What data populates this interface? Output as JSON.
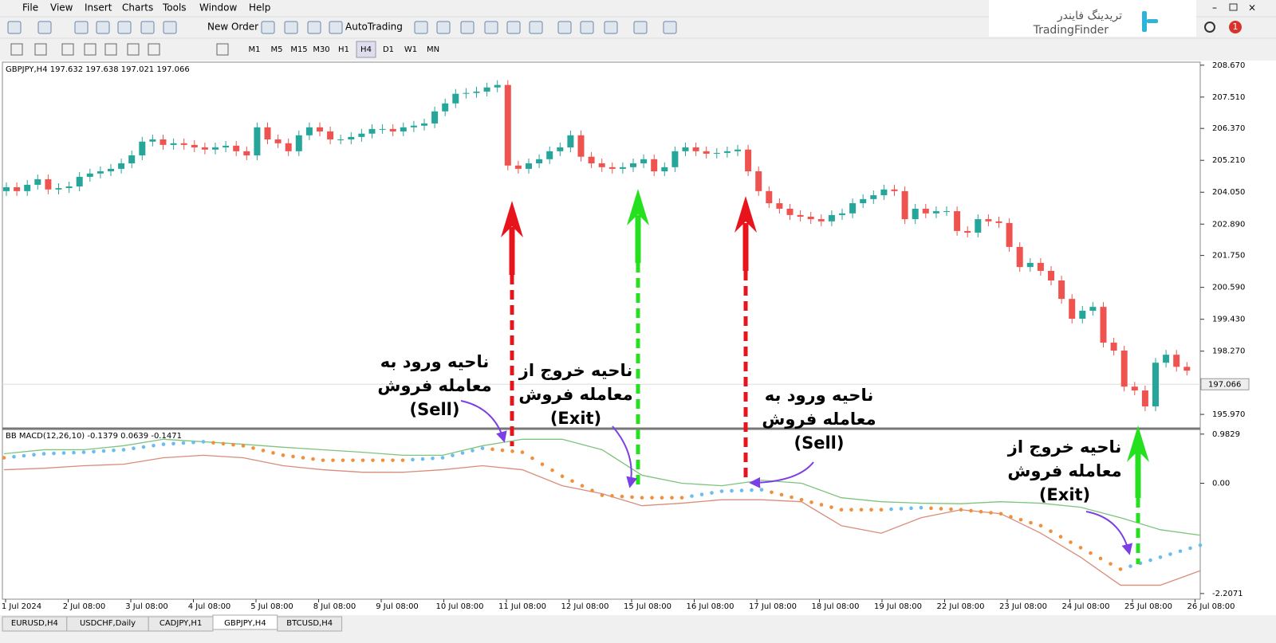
{
  "menu": [
    "File",
    "View",
    "Insert",
    "Charts",
    "Tools",
    "Window",
    "Help"
  ],
  "toolbar": {
    "new_order": "New Order",
    "auto_trading": "AutoTrading"
  },
  "timeframes": [
    "M1",
    "M5",
    "M15",
    "M30",
    "H1",
    "H4",
    "D1",
    "W1",
    "MN"
  ],
  "logo": {
    "fa": "تریدینگ فایندر",
    "en": "TradingFinder"
  },
  "notification": "1",
  "price_chart": {
    "type": "candlestick",
    "header": "GBPJPY,H4 197.632 197.638 197.021 197.066",
    "ylim": [
      195.48,
      208.78
    ],
    "yticks": [
      {
        "value": 208.67,
        "label": "208.670"
      },
      {
        "value": 207.51,
        "label": "207.510"
      },
      {
        "value": 206.37,
        "label": "206.370"
      },
      {
        "value": 205.21,
        "label": "205.210"
      },
      {
        "value": 204.05,
        "label": "204.050"
      },
      {
        "value": 202.89,
        "label": "202.890"
      },
      {
        "value": 201.75,
        "label": "201.750"
      },
      {
        "value": 200.59,
        "label": "200.590"
      },
      {
        "value": 199.43,
        "label": "199.430"
      },
      {
        "value": 198.27,
        "label": "198.270"
      },
      {
        "value": 195.97,
        "label": "195.970"
      }
    ],
    "current_price": 197.066,
    "up_color": "#26a69a",
    "down_color": "#ef5350",
    "candles": [
      [
        204.09,
        204.23
      ],
      [
        204.23,
        204.09
      ],
      [
        204.09,
        204.32
      ],
      [
        204.32,
        204.52
      ],
      [
        204.52,
        204.15
      ],
      [
        204.15,
        204.2
      ],
      [
        204.2,
        204.26
      ],
      [
        204.26,
        204.61
      ],
      [
        204.61,
        204.73
      ],
      [
        204.73,
        204.81
      ],
      [
        204.81,
        204.9
      ],
      [
        204.9,
        205.1
      ],
      [
        205.1,
        205.39
      ],
      [
        205.39,
        205.89
      ],
      [
        205.89,
        205.97
      ],
      [
        205.97,
        205.77
      ],
      [
        205.77,
        205.83
      ],
      [
        205.83,
        205.77
      ],
      [
        205.77,
        205.68
      ],
      [
        205.68,
        205.6
      ],
      [
        205.6,
        205.68
      ],
      [
        205.68,
        205.74
      ],
      [
        205.74,
        205.54
      ],
      [
        205.54,
        205.39
      ],
      [
        205.39,
        206.41
      ],
      [
        206.41,
        205.97
      ],
      [
        205.97,
        205.83
      ],
      [
        205.83,
        205.54
      ],
      [
        205.54,
        206.12
      ],
      [
        206.12,
        206.41
      ],
      [
        206.41,
        206.26
      ],
      [
        206.26,
        205.97
      ],
      [
        205.97,
        205.97
      ],
      [
        205.97,
        206.06
      ],
      [
        206.06,
        206.18
      ],
      [
        206.18,
        206.35
      ],
      [
        206.35,
        206.35
      ],
      [
        206.35,
        206.26
      ],
      [
        206.26,
        206.41
      ],
      [
        206.41,
        206.47
      ],
      [
        206.47,
        206.55
      ],
      [
        206.55,
        206.99
      ],
      [
        206.99,
        207.28
      ],
      [
        207.28,
        207.63
      ],
      [
        207.63,
        207.66
      ],
      [
        207.66,
        207.71
      ],
      [
        207.71,
        207.86
      ],
      [
        207.86,
        207.95
      ],
      [
        207.95,
        205.02
      ],
      [
        205.02,
        204.9
      ],
      [
        204.9,
        205.1
      ],
      [
        205.1,
        205.25
      ],
      [
        205.25,
        205.54
      ],
      [
        205.54,
        205.68
      ],
      [
        205.68,
        206.12
      ],
      [
        206.12,
        205.34
      ],
      [
        205.34,
        205.1
      ],
      [
        205.1,
        204.96
      ],
      [
        204.96,
        204.9
      ],
      [
        204.9,
        204.96
      ],
      [
        204.96,
        205.1
      ],
      [
        205.1,
        205.25
      ],
      [
        205.25,
        204.81
      ],
      [
        204.81,
        204.96
      ],
      [
        204.96,
        205.54
      ],
      [
        205.54,
        205.68
      ],
      [
        205.68,
        205.54
      ],
      [
        205.54,
        205.45
      ],
      [
        205.45,
        205.48
      ],
      [
        205.48,
        205.54
      ],
      [
        205.54,
        205.6
      ],
      [
        205.6,
        204.81
      ],
      [
        204.81,
        204.09
      ],
      [
        204.09,
        203.65
      ],
      [
        203.65,
        203.45
      ],
      [
        203.45,
        203.22
      ],
      [
        203.22,
        203.16
      ],
      [
        203.16,
        203.07
      ],
      [
        203.07,
        202.99
      ],
      [
        202.99,
        203.22
      ],
      [
        203.22,
        203.28
      ],
      [
        203.28,
        203.65
      ],
      [
        203.65,
        203.8
      ],
      [
        203.8,
        203.94
      ],
      [
        203.94,
        204.15
      ],
      [
        204.15,
        204.09
      ],
      [
        204.09,
        203.07
      ],
      [
        203.07,
        203.45
      ],
      [
        203.45,
        203.28
      ],
      [
        203.28,
        203.36
      ],
      [
        203.36,
        203.36
      ],
      [
        203.36,
        202.64
      ],
      [
        202.64,
        202.58
      ],
      [
        202.58,
        203.07
      ],
      [
        203.07,
        202.99
      ],
      [
        202.99,
        202.93
      ],
      [
        202.93,
        202.06
      ],
      [
        202.06,
        201.33
      ],
      [
        201.33,
        201.48
      ],
      [
        201.48,
        201.19
      ],
      [
        201.19,
        200.84
      ],
      [
        200.84,
        200.17
      ],
      [
        200.17,
        199.45
      ],
      [
        199.45,
        199.74
      ],
      [
        199.74,
        199.88
      ],
      [
        199.88,
        198.58
      ],
      [
        198.58,
        198.29
      ],
      [
        198.29,
        196.98
      ],
      [
        196.98,
        196.84
      ],
      [
        196.84,
        196.26
      ],
      [
        196.26,
        197.85
      ],
      [
        197.85,
        198.14
      ],
      [
        198.14,
        197.7
      ],
      [
        197.7,
        197.56
      ]
    ]
  },
  "indicator": {
    "type": "line",
    "header": "BB MACD(12,26,10) -0.1379 0.0639 -0.1471",
    "ylim": [
      -2.32,
      1.06
    ],
    "yticks": [
      0.9829,
      {
        "value": 0,
        "label": "0.00"
      },
      -2.2071
    ],
    "series": [
      {
        "color": "#7dc47d",
        "values": [
          0.59,
          0.67,
          0.67,
          0.75,
          0.88,
          0.83,
          0.78,
          0.72,
          0.67,
          0.62,
          0.56,
          0.56,
          0.75,
          0.88,
          0.88,
          0.67,
          0.16,
          0,
          -0.05,
          0.06,
          0,
          -0.29,
          -0.37,
          -0.4,
          -0.41,
          -0.37,
          -0.4,
          -0.48,
          -0.69,
          -0.93,
          -1.04
        ]
      },
      {
        "color": "#d98c7a",
        "values": [
          0.27,
          0.3,
          0.35,
          0.38,
          0.51,
          0.56,
          0.51,
          0.35,
          0.27,
          0.22,
          0.22,
          0.27,
          0.35,
          0.27,
          -0.05,
          -0.21,
          -0.45,
          -0.4,
          -0.33,
          -0.33,
          -0.37,
          -0.85,
          -1,
          -0.69,
          -0.53,
          -0.61,
          -1,
          -1.48,
          -2.04,
          -2.04,
          -1.75
        ]
      }
    ],
    "dots": {
      "up_color": "#6cbcf0",
      "down_color": "#f0903c",
      "values": [
        0.51,
        0.59,
        0.62,
        0.67,
        0.78,
        0.83,
        0.75,
        0.56,
        0.46,
        0.46,
        0.46,
        0.51,
        0.7,
        0.62,
        0.14,
        -0.24,
        -0.29,
        -0.29,
        -0.16,
        -0.13,
        -0.33,
        -0.53,
        -0.53,
        -0.49,
        -0.53,
        -0.61,
        -0.85,
        -1.29,
        -1.72,
        -1.48,
        -1.24
      ]
    }
  },
  "dates": [
    "1 Jul 2024",
    "2 Jul 08:00",
    "3 Jul 08:00",
    "4 Jul 08:00",
    "5 Jul 08:00",
    "8 Jul 08:00",
    "9 Jul 08:00",
    "10 Jul 08:00",
    "11 Jul 08:00",
    "12 Jul 08:00",
    "15 Jul 08:00",
    "16 Jul 08:00",
    "17 Jul 08:00",
    "18 Jul 08:00",
    "19 Jul 08:00",
    "22 Jul 08:00",
    "23 Jul 08:00",
    "24 Jul 08:00",
    "25 Jul 08:00",
    "26 Jul 08:00"
  ],
  "tabs": [
    "EURUSD,H4",
    "USDCHF,Daily",
    "CADJPY,H1",
    "GBPJPY,H4",
    "BTCUSD,H4"
  ],
  "annotations": [
    {
      "lines": [
        "ناحیه ورود به",
        "معامله فروش",
        "(Sell)"
      ]
    },
    {
      "lines": [
        "ناحیه خروج از",
        "معامله فروش",
        "(Exit)"
      ]
    },
    {
      "lines": [
        "ناحیه ورود به",
        "معامله فروش",
        "(Sell)"
      ]
    },
    {
      "lines": [
        "ناحیه خروج از",
        "معامله فروش",
        "(Exit)"
      ]
    }
  ]
}
